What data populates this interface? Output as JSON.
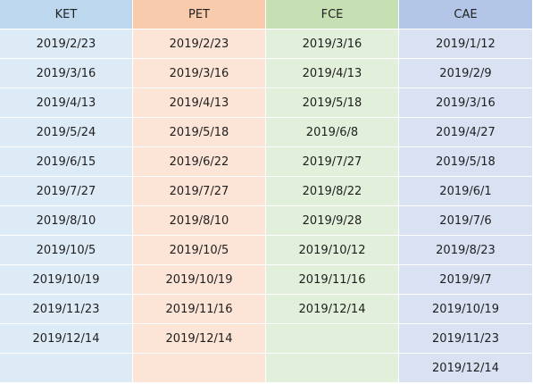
{
  "table": {
    "columns": [
      "KET",
      "PET",
      "FCE",
      "CAE"
    ],
    "rows": [
      [
        "2019/2/23",
        "2019/2/23",
        "2019/3/16",
        "2019/1/12"
      ],
      [
        "2019/3/16",
        "2019/3/16",
        "2019/4/13",
        "2019/2/9"
      ],
      [
        "2019/4/13",
        "2019/4/13",
        "2019/5/18",
        "2019/3/16"
      ],
      [
        "2019/5/24",
        "2019/5/18",
        "2019/6/8",
        "2019/4/27"
      ],
      [
        "2019/6/15",
        "2019/6/22",
        "2019/7/27",
        "2019/5/18"
      ],
      [
        "2019/7/27",
        "2019/7/27",
        "2019/8/22",
        "2019/6/1"
      ],
      [
        "2019/8/10",
        "2019/8/10",
        "2019/9/28",
        "2019/7/6"
      ],
      [
        "2019/10/5",
        "2019/10/5",
        "2019/10/12",
        "2019/8/23"
      ],
      [
        "2019/10/19",
        "2019/10/19",
        "2019/11/16",
        "2019/9/7"
      ],
      [
        "2019/11/23",
        "2019/11/16",
        "2019/12/14",
        "2019/10/19"
      ],
      [
        "2019/12/14",
        "2019/12/14",
        "",
        "2019/11/23"
      ],
      [
        "",
        "",
        "",
        "2019/12/14"
      ]
    ]
  },
  "colors": {
    "ket_header": "#bdd7ee",
    "pet_header": "#f8cbad",
    "fce_header": "#c6e0b4",
    "cae_header": "#b4c6e7",
    "ket_body": "#ddebf7",
    "pet_body": "#fce4d6",
    "fce_body": "#e2efda",
    "cae_body": "#d9e1f2"
  }
}
